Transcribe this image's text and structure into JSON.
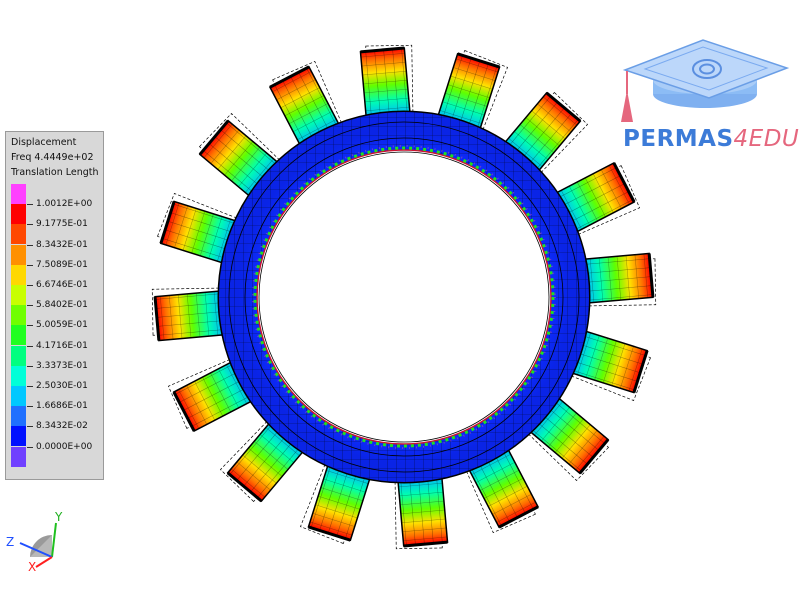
{
  "legend": {
    "title": "Displacement",
    "frequency": "Freq 4.4449e+02",
    "quantity": "Translation Length",
    "colors": [
      "#ff40ff",
      "#ff0000",
      "#ff4800",
      "#ff9000",
      "#ffd800",
      "#c8ff00",
      "#70ff00",
      "#20ff20",
      "#00ff80",
      "#00ffd8",
      "#00c8ff",
      "#2070ff",
      "#0010ff",
      "#7040ff"
    ],
    "values": [
      "1.0012E+00",
      "9.1775E-01",
      "8.3432E-01",
      "7.5089E-01",
      "6.6746E-01",
      "5.8402E-01",
      "5.0059E-01",
      "4.1716E-01",
      "3.3373E-01",
      "2.5030E-01",
      "1.6686E-01",
      "8.3432E-02",
      "0.0000E+00"
    ]
  },
  "logo": {
    "brand": "PERMAS",
    "suffix": "4EDU"
  },
  "axes": {
    "x": "X",
    "y": "Y",
    "z": "Z"
  },
  "model": {
    "tooth_count": 16
  }
}
